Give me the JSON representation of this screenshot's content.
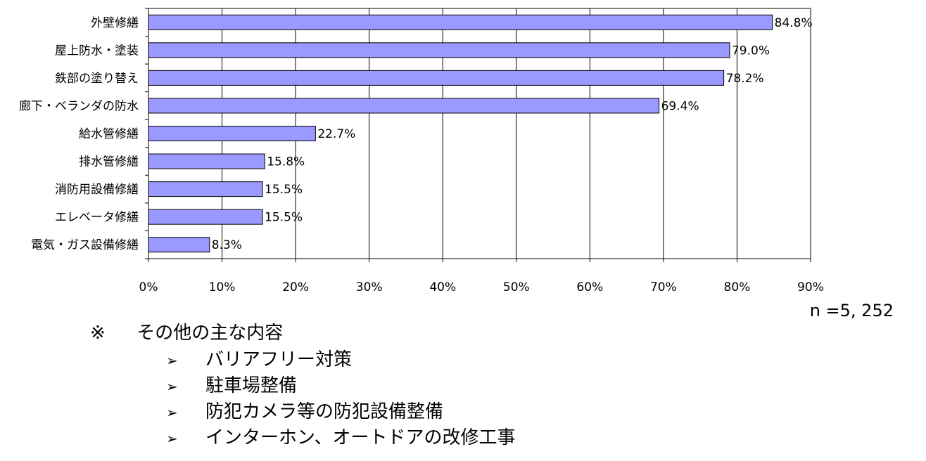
{
  "chart_data": {
    "type": "bar",
    "orientation": "horizontal",
    "categories": [
      "外壁修繕",
      "屋上防水・塗装",
      "鉄部の塗り替え",
      "廊下・ベランダの防水",
      "給水管修繕",
      "排水管修繕",
      "消防用設備修繕",
      "エレベータ修繕",
      "電気・ガス設備修繕"
    ],
    "values": [
      84.8,
      79.0,
      78.2,
      69.4,
      22.7,
      15.8,
      15.5,
      15.5,
      8.3
    ],
    "value_labels": [
      "84.8%",
      "79.0%",
      "78.2%",
      "69.4%",
      "22.7%",
      "15.8%",
      "15.5%",
      "15.5%",
      "8.3%"
    ],
    "xlim": [
      0,
      90
    ],
    "x_ticks": [
      0,
      10,
      20,
      30,
      40,
      50,
      60,
      70,
      80,
      90
    ],
    "x_tick_labels": [
      "0%",
      "10%",
      "20%",
      "30%",
      "40%",
      "50%",
      "60%",
      "70%",
      "80%",
      "90%"
    ],
    "grid": true,
    "bar_color": "#9999ff",
    "n_label": "n =5, 252"
  },
  "notes": {
    "mark": "※",
    "heading": "その他の主な内容",
    "bullet": "➢",
    "items": [
      "バリアフリー対策",
      "駐車場整備",
      "防犯カメラ等の防犯設備整備",
      "インターホン、オートドアの改修工事"
    ]
  }
}
